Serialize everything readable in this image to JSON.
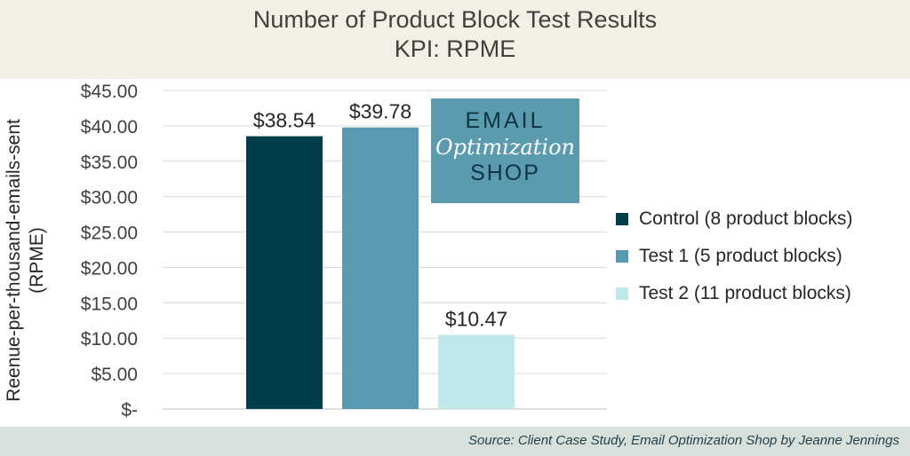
{
  "header": {
    "title_line1": "Number of Product Block Test Results",
    "title_line2": "KPI: RPME"
  },
  "logo": {
    "line1": "EMAIL",
    "line2": "Optimization",
    "line3": "SHOP"
  },
  "footer": {
    "source": "Source: Client Case Study, Email Optimization Shop by Jeanne Jennings"
  },
  "colors": {
    "control": "#023e4a",
    "test1": "#579ab1",
    "test2": "#bfe8eb",
    "header_bg": "#f2efe4",
    "footer_bg": "#d7e0da",
    "logo_bg": "#5b9bb0"
  },
  "chart_data": {
    "type": "bar",
    "title": "Number of Product Block Test Results",
    "subtitle": "KPI: RPME",
    "ylabel": "Reenue-per-thousand-emails-sent (RPME)",
    "ylabel_lines": [
      "Reenue-per-thousand-emails-sent",
      "(RPME)"
    ],
    "xlabel": "",
    "ylim": [
      0,
      45
    ],
    "yticks": [
      0,
      5,
      10,
      15,
      20,
      25,
      30,
      35,
      40,
      45
    ],
    "ytick_labels": [
      "$-",
      "$5.00",
      "$10.00",
      "$15.00",
      "$20.00",
      "$25.00",
      "$30.00",
      "$35.00",
      "$40.00",
      "$45.00"
    ],
    "grid": true,
    "legend_position": "right",
    "series": [
      {
        "name": "Control (8 product blocks)",
        "value": 38.54,
        "label": "$38.54",
        "color": "#023e4a"
      },
      {
        "name": "Test 1 (5 product blocks)",
        "value": 39.78,
        "label": "$39.78",
        "color": "#579ab1"
      },
      {
        "name": "Test 2 (11 product blocks)",
        "value": 10.47,
        "label": "$10.47",
        "color": "#bfe8eb"
      }
    ]
  }
}
